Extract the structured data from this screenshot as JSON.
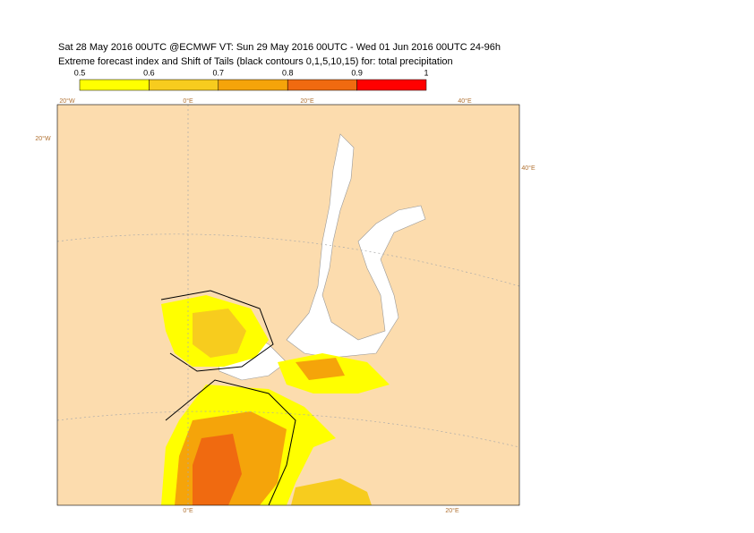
{
  "title": {
    "line1": "Sat 28 May 2016 00UTC @ECMWF VT: Sun 29 May 2016 00UTC - Wed 01 Jun 2016 00UTC  24-96h",
    "line2": "Extreme forecast index and Shift of Tails (black contours 0,1,5,10,15) for: total precipitation"
  },
  "colorbar": {
    "ticks": [
      0.5,
      0.6,
      0.7,
      0.8,
      0.9,
      1
    ],
    "colors": [
      "#ffff00",
      "#f7cc1e",
      "#f5a40a",
      "#f06a10",
      "#ff0000"
    ]
  },
  "map": {
    "top_labels": [
      "20°W",
      "0°E",
      "20°E",
      "40°E"
    ],
    "left_label": "20°W",
    "right_label": "40°E",
    "bottom_labels": [
      "0°E",
      "20°E"
    ]
  }
}
